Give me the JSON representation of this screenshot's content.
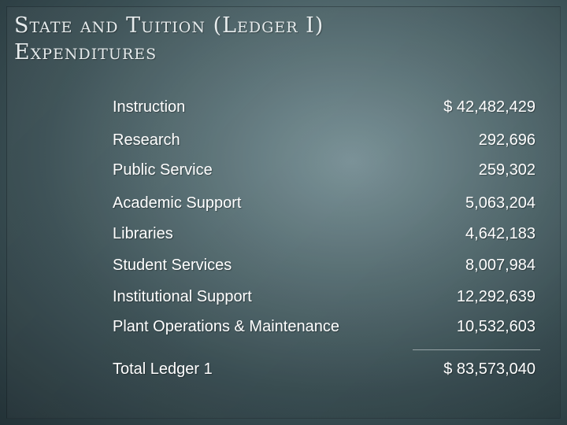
{
  "slide": {
    "title_line1": "State and Tuition (Ledger I)",
    "title_line2": "Expenditures"
  },
  "ledger": {
    "rows": [
      {
        "label": "Instruction",
        "amount": "$ 42,482,429"
      },
      {
        "label": "Research",
        "amount": "292,696"
      },
      {
        "label": "Public Service",
        "amount": "259,302"
      },
      {
        "label": "Academic Support",
        "amount": "5,063,204"
      },
      {
        "label": "Libraries",
        "amount": "4,642,183"
      },
      {
        "label": "Student Services",
        "amount": "8,007,984"
      },
      {
        "label": "Institutional Support",
        "amount": "12,292,639"
      },
      {
        "label": "Plant Operations & Maintenance",
        "amount": "10,532,603"
      }
    ],
    "total": {
      "label": "Total Ledger 1",
      "amount": "$ 83,573,040"
    }
  }
}
